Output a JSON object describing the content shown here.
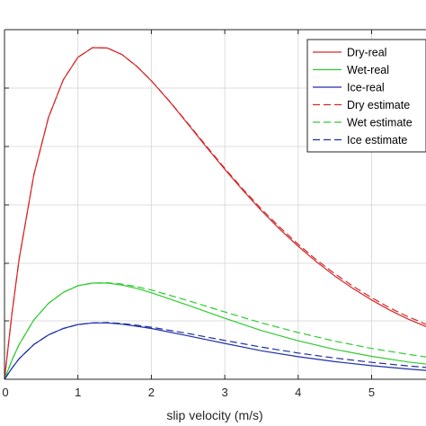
{
  "chart_data": {
    "type": "line",
    "xlabel": "slip velocity (m/s)",
    "ylabel": "",
    "xlim": [
      0,
      5.85
    ],
    "ylim": [
      0,
      1.0
    ],
    "xticks": [
      0,
      1,
      2,
      3,
      4,
      5
    ],
    "grid": true,
    "legend_position": "top-right",
    "series": [
      {
        "name": "Dry-real",
        "color": "#d62728",
        "dash": "solid",
        "x": [
          0,
          0.1,
          0.2,
          0.4,
          0.6,
          0.8,
          1.0,
          1.2,
          1.4,
          1.6,
          1.8,
          2.0,
          2.25,
          2.5,
          2.75,
          3.0,
          3.25,
          3.5,
          3.75,
          4.0,
          4.25,
          4.5,
          4.75,
          5.0,
          5.25,
          5.5,
          5.85
        ],
        "y": [
          0,
          0.196,
          0.363,
          0.617,
          0.79,
          0.903,
          0.971,
          1.0,
          0.999,
          0.979,
          0.944,
          0.9,
          0.837,
          0.769,
          0.7,
          0.633,
          0.569,
          0.508,
          0.452,
          0.401,
          0.354,
          0.311,
          0.273,
          0.239,
          0.208,
          0.181,
          0.149
        ]
      },
      {
        "name": "Wet-real",
        "color": "#2ecc2e",
        "dash": "solid",
        "x": [
          0,
          0.1,
          0.2,
          0.4,
          0.6,
          0.8,
          1.0,
          1.2,
          1.4,
          1.6,
          1.8,
          2.0,
          2.5,
          3.0,
          3.5,
          4.0,
          4.5,
          5.0,
          5.5,
          5.85
        ],
        "y": [
          0,
          0.057,
          0.105,
          0.179,
          0.229,
          0.262,
          0.282,
          0.29,
          0.29,
          0.284,
          0.274,
          0.261,
          0.223,
          0.184,
          0.147,
          0.116,
          0.09,
          0.069,
          0.052,
          0.043
        ]
      },
      {
        "name": "Ice-real",
        "color": "#1f2fa8",
        "dash": "solid",
        "x": [
          0,
          0.1,
          0.2,
          0.4,
          0.6,
          0.8,
          1.0,
          1.2,
          1.4,
          1.6,
          1.8,
          2.0,
          2.5,
          3.0,
          3.5,
          4.0,
          4.5,
          5.0,
          5.5,
          5.85
        ],
        "y": [
          0,
          0.033,
          0.062,
          0.105,
          0.134,
          0.153,
          0.165,
          0.17,
          0.17,
          0.166,
          0.16,
          0.153,
          0.131,
          0.108,
          0.086,
          0.068,
          0.053,
          0.041,
          0.031,
          0.025
        ]
      },
      {
        "name": "Dry estimate",
        "color": "#d62728",
        "dash": "dashed",
        "x": [
          0,
          0.1,
          0.2,
          0.4,
          0.6,
          0.8,
          1.0,
          1.2,
          1.4,
          1.6,
          1.8,
          2.0,
          2.25,
          2.5,
          2.75,
          3.0,
          3.25,
          3.5,
          3.75,
          4.0,
          4.25,
          4.5,
          4.75,
          5.0,
          5.25,
          5.5,
          5.85
        ],
        "y": [
          0,
          0.196,
          0.363,
          0.617,
          0.79,
          0.903,
          0.971,
          1.0,
          0.999,
          0.979,
          0.944,
          0.9,
          0.838,
          0.771,
          0.703,
          0.636,
          0.573,
          0.513,
          0.458,
          0.407,
          0.36,
          0.318,
          0.28,
          0.246,
          0.215,
          0.188,
          0.156
        ]
      },
      {
        "name": "Wet estimate",
        "color": "#2ecc2e",
        "dash": "dashed",
        "x": [
          0,
          0.1,
          0.2,
          0.4,
          0.6,
          0.8,
          1.0,
          1.2,
          1.4,
          1.6,
          1.8,
          2.0,
          2.5,
          3.0,
          3.5,
          4.0,
          4.5,
          5.0,
          5.5,
          5.85
        ],
        "y": [
          0,
          0.057,
          0.105,
          0.179,
          0.229,
          0.262,
          0.282,
          0.29,
          0.291,
          0.287,
          0.279,
          0.269,
          0.237,
          0.203,
          0.17,
          0.141,
          0.115,
          0.093,
          0.075,
          0.064
        ]
      },
      {
        "name": "Ice estimate",
        "color": "#1f2fa8",
        "dash": "dashed",
        "x": [
          0,
          0.1,
          0.2,
          0.4,
          0.6,
          0.8,
          1.0,
          1.2,
          1.4,
          1.6,
          1.8,
          2.0,
          2.5,
          3.0,
          3.5,
          4.0,
          4.5,
          5.0,
          5.5,
          5.85
        ],
        "y": [
          0,
          0.033,
          0.062,
          0.105,
          0.134,
          0.153,
          0.165,
          0.17,
          0.171,
          0.168,
          0.163,
          0.157,
          0.138,
          0.117,
          0.097,
          0.079,
          0.064,
          0.051,
          0.04,
          0.034
        ]
      }
    ]
  }
}
